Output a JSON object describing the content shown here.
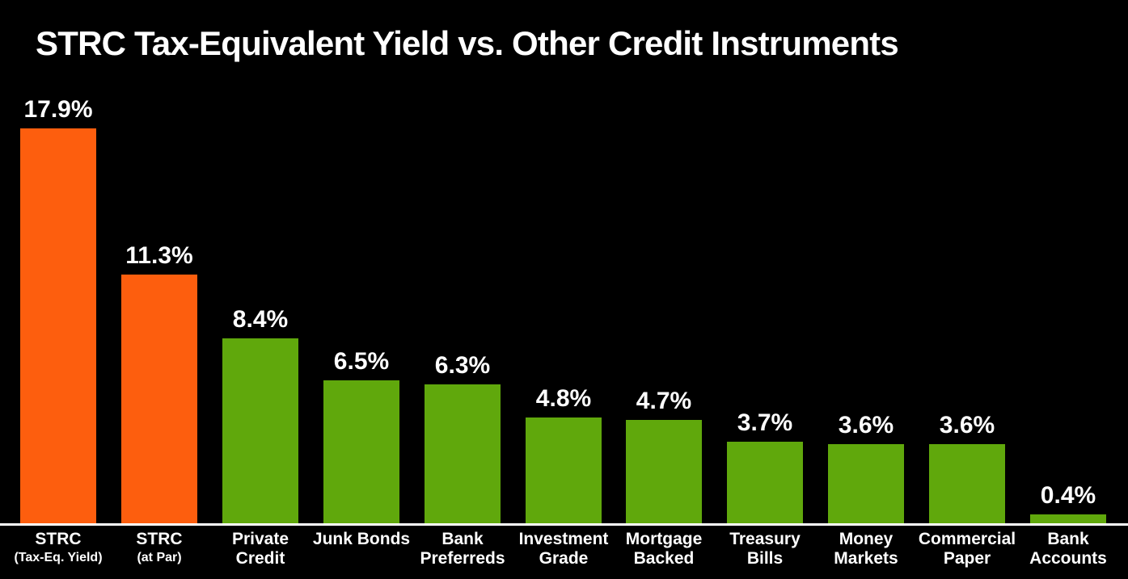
{
  "title": "STRC Tax-Equivalent Yield vs. Other Credit Instruments",
  "chart_data": {
    "type": "bar",
    "title": "STRC Tax-Equivalent Yield vs. Other Credit Instruments",
    "categories": [
      "STRC\n(Tax-Eq. Yield)",
      "STRC\n(at Par)",
      "Private\nCredit",
      "Junk Bonds",
      "Bank\nPreferreds",
      "Investment\nGrade",
      "Mortgage\nBacked",
      "Treasury\nBills",
      "Money\nMarkets",
      "Commercial\nPaper",
      "Bank\nAccounts"
    ],
    "values": [
      17.9,
      11.3,
      8.4,
      6.5,
      6.3,
      4.8,
      4.7,
      3.7,
      3.6,
      3.6,
      0.4
    ],
    "value_labels": [
      "17.9%",
      "11.3%",
      "8.4%",
      "6.5%",
      "6.3%",
      "4.8%",
      "4.7%",
      "3.7%",
      "3.6%",
      "3.6%",
      "0.4%"
    ],
    "bar_color_keys": [
      "orange",
      "orange",
      "green",
      "green",
      "green",
      "green",
      "green",
      "green",
      "green",
      "green",
      "green"
    ],
    "colors": {
      "orange": "#FD5E0E",
      "green": "#60A80C",
      "text": "#FFFFFF",
      "axis": "#FFFFFF",
      "background": "#000000"
    },
    "xlabel": "",
    "ylabel": "",
    "ylim": [
      0,
      19
    ],
    "grid": false,
    "legend": null
  }
}
